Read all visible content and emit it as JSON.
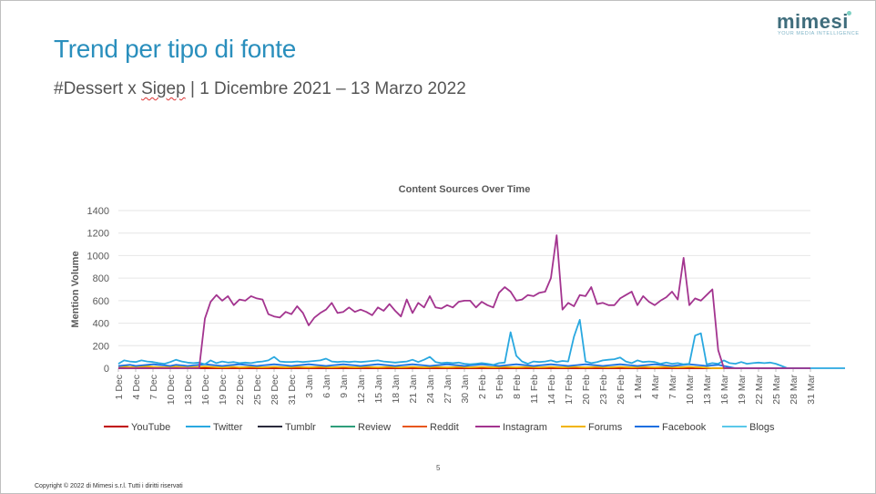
{
  "slide": {
    "title": "Trend per tipo di fonte",
    "subtitle_hashtag": "#Dessert x ",
    "subtitle_brand": "Sigep",
    "subtitle_period": " | 1 Dicembre 2021 – 13 Marzo 2022",
    "logo_word": "mimesi",
    "logo_tagline": "YOUR MEDIA INTELLIGENCE",
    "page_number": "5",
    "copyright": "Copyright © 2022 di Mimesi s.r.l. Tutti i diritti riservati"
  },
  "chart_data": {
    "type": "line",
    "title": "Content Sources Over Time",
    "xlabel": "",
    "ylabel": "Mention Volume",
    "ylim": [
      0,
      1400
    ],
    "yticks": [
      0,
      200,
      400,
      600,
      800,
      1000,
      1200,
      1400
    ],
    "grid": true,
    "legend_position": "bottom",
    "x_start": "2021-12-01",
    "x_end": "2022-03-31",
    "x_tick_labels": [
      "1 Dec",
      "4 Dec",
      "7 Dec",
      "10 Dec",
      "13 Dec",
      "16 Dec",
      "19 Dec",
      "22 Dec",
      "25 Dec",
      "28 Dec",
      "31 Dec",
      "3 Jan",
      "6 Jan",
      "9 Jan",
      "12 Jan",
      "15 Jan",
      "18 Jan",
      "21 Jan",
      "24 Jan",
      "27 Jan",
      "30 Jan",
      "2 Feb",
      "5 Feb",
      "8 Feb",
      "11 Feb",
      "14 Feb",
      "17 Feb",
      "20 Feb",
      "23 Feb",
      "26 Feb",
      "1 Mar",
      "4 Mar",
      "7 Mar",
      "10 Mar",
      "13 Mar",
      "16 Mar",
      "19 Mar",
      "22 Mar",
      "25 Mar",
      "28 Mar",
      "31 Mar"
    ],
    "series": [
      {
        "name": "YouTube",
        "color": "#c00000",
        "values": [
          2,
          2,
          2,
          2,
          2,
          2,
          2,
          2,
          2,
          2,
          2,
          2,
          2,
          2,
          2,
          2,
          2,
          2,
          2,
          2,
          2,
          2,
          2,
          2,
          2,
          2,
          2,
          2,
          2,
          2,
          2,
          2,
          2,
          2,
          2,
          2,
          2,
          2,
          2,
          2,
          2,
          2,
          2,
          2,
          2,
          2,
          2,
          2,
          2,
          2,
          2,
          2,
          2,
          2,
          2,
          2,
          2,
          2,
          2,
          2,
          2,
          2,
          2,
          2,
          2,
          2,
          2,
          2,
          2,
          2,
          2,
          2,
          2,
          2,
          2,
          2,
          2,
          2,
          2,
          2,
          2,
          2,
          2,
          2,
          2,
          2,
          2,
          2,
          2,
          2,
          2,
          2,
          2,
          2,
          2,
          2,
          2,
          2,
          2,
          2,
          2,
          2,
          2,
          0,
          0,
          0,
          0,
          0,
          0,
          0,
          0,
          0,
          0,
          0,
          0,
          0,
          0,
          0,
          0,
          0,
          0
        ]
      },
      {
        "name": "Twitter",
        "color": "#29a8e0",
        "values": [
          40,
          70,
          60,
          55,
          70,
          60,
          55,
          45,
          40,
          55,
          75,
          60,
          50,
          45,
          50,
          35,
          70,
          45,
          60,
          50,
          55,
          45,
          50,
          45,
          55,
          60,
          70,
          100,
          60,
          55,
          55,
          60,
          55,
          60,
          65,
          70,
          85,
          60,
          55,
          60,
          55,
          60,
          55,
          60,
          65,
          70,
          60,
          55,
          50,
          55,
          60,
          75,
          55,
          75,
          100,
          55,
          45,
          50,
          45,
          50,
          40,
          35,
          40,
          45,
          40,
          30,
          45,
          50,
          320,
          110,
          60,
          40,
          60,
          55,
          60,
          70,
          55,
          65,
          60,
          280,
          430,
          60,
          45,
          55,
          70,
          75,
          80,
          95,
          60,
          45,
          70,
          55,
          60,
          55,
          40,
          50,
          40,
          45,
          35,
          40,
          290,
          310,
          35,
          45,
          40,
          70,
          45,
          40,
          55,
          40,
          45,
          50,
          45,
          50,
          40,
          20,
          0,
          0,
          0,
          0,
          0,
          0,
          0,
          0,
          0,
          0,
          0
        ]
      },
      {
        "name": "Tumblr",
        "color": "#2b2b3d",
        "values": [
          0,
          0,
          0,
          0,
          0,
          0,
          0,
          0,
          0,
          0,
          0,
          0,
          0,
          0,
          0,
          0,
          0,
          0,
          0,
          0,
          0,
          0,
          0,
          0,
          0,
          0,
          0,
          0,
          0,
          0,
          0,
          0,
          0,
          0,
          0,
          0,
          0,
          0,
          0,
          0,
          0,
          0,
          0,
          0,
          0,
          0,
          0,
          0,
          0,
          0,
          0,
          0,
          0,
          0,
          0,
          0,
          0,
          0,
          0,
          0,
          0,
          0,
          0,
          0,
          0,
          0,
          0,
          0,
          0,
          0,
          0,
          0,
          0,
          0,
          0,
          0,
          0,
          0,
          0,
          0,
          0,
          0,
          0,
          0,
          0,
          0,
          0,
          0,
          0,
          0,
          0,
          0,
          0,
          0,
          0,
          0,
          0,
          0,
          0,
          0,
          0,
          0,
          0,
          0,
          0,
          0,
          0,
          0,
          0,
          0,
          0,
          0,
          0,
          0,
          0,
          0,
          0,
          0,
          0,
          0,
          0
        ]
      },
      {
        "name": "Review",
        "color": "#2e9e7a",
        "values": [
          3,
          3,
          3,
          3,
          3,
          3,
          3,
          3,
          3,
          3,
          3,
          3,
          3,
          3,
          3,
          3,
          3,
          3,
          3,
          3,
          3,
          3,
          3,
          3,
          3,
          3,
          3,
          3,
          3,
          3,
          3,
          3,
          3,
          3,
          3,
          3,
          3,
          3,
          3,
          3,
          3,
          3,
          3,
          3,
          3,
          3,
          3,
          3,
          3,
          3,
          3,
          3,
          3,
          3,
          3,
          3,
          3,
          3,
          3,
          3,
          3,
          3,
          3,
          3,
          3,
          3,
          3,
          3,
          3,
          3,
          3,
          3,
          3,
          3,
          3,
          3,
          3,
          3,
          3,
          3,
          3,
          3,
          3,
          3,
          3,
          3,
          3,
          3,
          3,
          3,
          3,
          3,
          3,
          3,
          3,
          3,
          3,
          3,
          3,
          3,
          3,
          3,
          3,
          0,
          0,
          0,
          0,
          0,
          0,
          0,
          0,
          0,
          0,
          0,
          0,
          0,
          0,
          0,
          0,
          0,
          0
        ]
      },
      {
        "name": "Reddit",
        "color": "#e8561c",
        "values": [
          0,
          0,
          0,
          0,
          0,
          0,
          0,
          0,
          0,
          0,
          0,
          0,
          0,
          0,
          0,
          0,
          0,
          0,
          0,
          0,
          0,
          0,
          0,
          0,
          0,
          0,
          0,
          0,
          0,
          0,
          0,
          0,
          0,
          0,
          0,
          0,
          0,
          0,
          0,
          0,
          0,
          0,
          0,
          0,
          0,
          0,
          0,
          0,
          0,
          0,
          0,
          0,
          0,
          0,
          0,
          0,
          0,
          0,
          0,
          0,
          0,
          0,
          0,
          0,
          0,
          0,
          0,
          0,
          0,
          0,
          0,
          0,
          0,
          0,
          0,
          0,
          0,
          0,
          0,
          0,
          0,
          0,
          0,
          0,
          0,
          0,
          0,
          0,
          0,
          0,
          0,
          0,
          0,
          0,
          0,
          0,
          0,
          0,
          0,
          0,
          0,
          0,
          0,
          0,
          0,
          0,
          0,
          0,
          0,
          0,
          0,
          0,
          0,
          0,
          0,
          0,
          0,
          0,
          0,
          0,
          0
        ]
      },
      {
        "name": "Instagram",
        "color": "#a3348f",
        "values": [
          0,
          0,
          0,
          0,
          0,
          0,
          0,
          0,
          0,
          0,
          0,
          0,
          0,
          0,
          0,
          440,
          590,
          650,
          600,
          640,
          560,
          610,
          600,
          640,
          620,
          610,
          480,
          460,
          450,
          500,
          480,
          550,
          490,
          380,
          450,
          490,
          520,
          580,
          490,
          500,
          540,
          500,
          520,
          500,
          470,
          540,
          510,
          570,
          510,
          460,
          610,
          490,
          580,
          540,
          640,
          540,
          530,
          560,
          540,
          590,
          600,
          600,
          540,
          590,
          560,
          540,
          670,
          720,
          680,
          600,
          610,
          650,
          640,
          670,
          680,
          800,
          1180,
          520,
          580,
          550,
          650,
          640,
          720,
          570,
          580,
          560,
          560,
          620,
          650,
          680,
          560,
          640,
          590,
          560,
          600,
          630,
          680,
          610,
          980,
          560,
          620,
          600,
          650,
          700,
          160,
          0,
          0,
          0,
          0,
          0,
          0,
          0,
          0,
          0,
          0,
          0,
          0,
          0,
          0,
          0,
          0
        ]
      },
      {
        "name": "Forums",
        "color": "#f2b400",
        "values": [
          20,
          15,
          10,
          12,
          15,
          18,
          12,
          10,
          8,
          12,
          15,
          10,
          8,
          10,
          12,
          15,
          12,
          10,
          8,
          10,
          12,
          8,
          10,
          12,
          10,
          8,
          10,
          12,
          10,
          8,
          10,
          12,
          10,
          8,
          10,
          12,
          10,
          8,
          10,
          12,
          10,
          8,
          10,
          12,
          10,
          8,
          10,
          12,
          10,
          8,
          10,
          12,
          10,
          8,
          10,
          12,
          10,
          8,
          10,
          12,
          10,
          8,
          10,
          12,
          10,
          8,
          10,
          12,
          10,
          8,
          10,
          12,
          10,
          8,
          10,
          12,
          10,
          8,
          10,
          12,
          10,
          8,
          10,
          12,
          10,
          8,
          10,
          12,
          10,
          8,
          10,
          12,
          10,
          8,
          10,
          12,
          10,
          8,
          10,
          12,
          10,
          8,
          5,
          0,
          0,
          0,
          0,
          0,
          0,
          0,
          0,
          0,
          0,
          0,
          0,
          0,
          0,
          0,
          0,
          0,
          0
        ]
      },
      {
        "name": "Facebook",
        "color": "#1b6fe0",
        "values": [
          20,
          25,
          30,
          20,
          25,
          30,
          35,
          30,
          25,
          20,
          30,
          25,
          20,
          25,
          30,
          35,
          30,
          25,
          20,
          25,
          30,
          35,
          30,
          25,
          20,
          25,
          30,
          35,
          30,
          25,
          20,
          25,
          30,
          35,
          30,
          25,
          20,
          25,
          30,
          35,
          30,
          25,
          20,
          25,
          30,
          35,
          30,
          25,
          20,
          25,
          30,
          35,
          30,
          25,
          20,
          25,
          30,
          35,
          30,
          25,
          20,
          25,
          30,
          35,
          30,
          25,
          20,
          25,
          30,
          35,
          30,
          25,
          20,
          25,
          30,
          35,
          30,
          25,
          20,
          25,
          30,
          35,
          30,
          25,
          20,
          25,
          30,
          35,
          30,
          25,
          20,
          25,
          30,
          35,
          30,
          25,
          20,
          25,
          30,
          35,
          30,
          25,
          20,
          25,
          30,
          20,
          10,
          0,
          0,
          0,
          0,
          0,
          0,
          0,
          0,
          0,
          0,
          0,
          0,
          0,
          0
        ]
      },
      {
        "name": "Blogs",
        "color": "#5bc8ea",
        "values": [
          0,
          0,
          0,
          0,
          0,
          0,
          0,
          0,
          0,
          0,
          0,
          0,
          0,
          0,
          0,
          0,
          0,
          0,
          0,
          0,
          0,
          0,
          0,
          0,
          0,
          0,
          0,
          0,
          0,
          0,
          0,
          0,
          0,
          0,
          0,
          0,
          0,
          0,
          0,
          0,
          0,
          0,
          0,
          0,
          0,
          0,
          0,
          0,
          0,
          0,
          0,
          0,
          0,
          0,
          0,
          0,
          0,
          0,
          0,
          0,
          0,
          0,
          0,
          0,
          0,
          0,
          0,
          0,
          0,
          0,
          0,
          0,
          0,
          0,
          0,
          0,
          0,
          0,
          0,
          0,
          0,
          0,
          0,
          0,
          0,
          0,
          0,
          0,
          0,
          0,
          0,
          0,
          0,
          0,
          0,
          0,
          0,
          0,
          0,
          0,
          0,
          0,
          0,
          0,
          0,
          0,
          0,
          0,
          0,
          0,
          0,
          0,
          0,
          0,
          0,
          0,
          0,
          0,
          0,
          0,
          0
        ]
      }
    ]
  }
}
